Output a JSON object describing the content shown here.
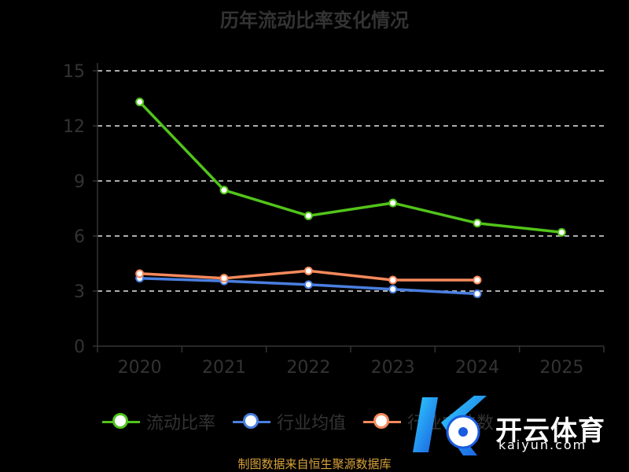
{
  "chart_data": {
    "type": "line",
    "title": "历年流动比率变化情况",
    "categories": [
      "2020",
      "2021",
      "2022",
      "2023",
      "2024",
      "2025"
    ],
    "ylim": [
      0,
      15
    ],
    "yticks": [
      "0",
      "3",
      "6",
      "9",
      "12",
      "15"
    ],
    "grid": true,
    "legend_position": "bottom",
    "series": [
      {
        "name": "流动比率",
        "color": "#52c41a",
        "values": [
          13.3,
          8.5,
          7.1,
          7.8,
          6.7,
          6.2
        ]
      },
      {
        "name": "行业均值",
        "color": "#4a7fe0",
        "values": [
          3.7,
          3.55,
          3.35,
          3.1,
          2.85,
          null
        ]
      },
      {
        "name": "行业中位数",
        "color": "#f5895c",
        "values": [
          3.95,
          3.7,
          4.1,
          3.6,
          3.6,
          null
        ]
      }
    ]
  },
  "source_text": "制图数据来自恒生聚源数据库",
  "watermark": {
    "brand": "开云体育",
    "sub": "kaiyun.com"
  }
}
